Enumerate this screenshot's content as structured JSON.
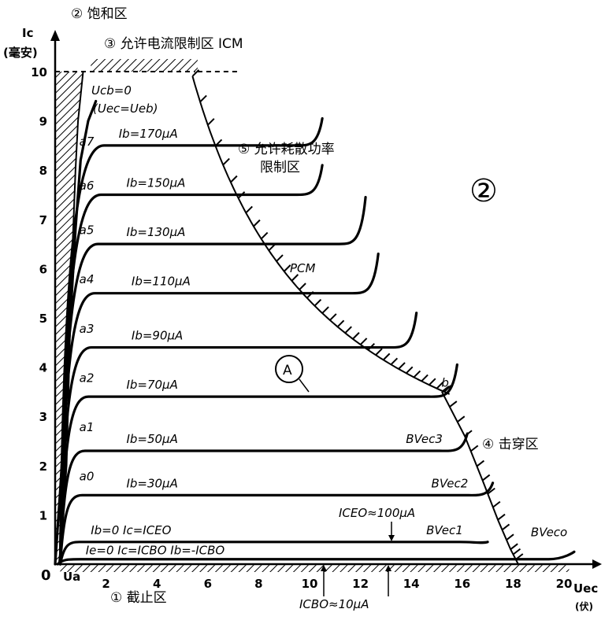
{
  "chart_data": {
    "type": "line",
    "xlabel": "Uec",
    "xunit": "(伏)",
    "ylabel": "Ic",
    "yunit": "(毫安)",
    "xlim": [
      0,
      21
    ],
    "ylim": [
      0,
      10.4
    ],
    "x_ticks": [
      2,
      4,
      6,
      8,
      10,
      12,
      14,
      16,
      18,
      20
    ],
    "y_ticks": [
      1,
      2,
      3,
      4,
      5,
      6,
      7,
      8,
      9,
      10
    ],
    "origin_label": "0",
    "ua_label": "Ua",
    "series": [
      {
        "name": "Ib=0   Ic=ICEO",
        "plateau": 0.45,
        "end_x": 17.0,
        "end_y": 0.45,
        "bv": "BVec1"
      },
      {
        "name": "Ib=30μA",
        "plateau": 1.4,
        "end_x": 17.2,
        "end_y": 1.65,
        "bv": "BVec2"
      },
      {
        "name": "Ib=50μA",
        "plateau": 2.3,
        "end_x": 16.2,
        "end_y": 2.65,
        "bv": "BVec3"
      },
      {
        "name": "Ib=70μA",
        "plateau": 3.4,
        "end_x": 15.8,
        "end_y": 4.05,
        "bv": "b"
      },
      {
        "name": "Ib=90μA",
        "plateau": 4.4,
        "end_x": 14.2,
        "end_y": 5.1
      },
      {
        "name": "Ib=110μA",
        "plateau": 5.5,
        "end_x": 12.7,
        "end_y": 6.3
      },
      {
        "name": "Ib=130μA",
        "plateau": 6.5,
        "end_x": 12.2,
        "end_y": 7.45
      },
      {
        "name": "Ib=150μA",
        "plateau": 7.5,
        "end_x": 10.5,
        "end_y": 8.1
      },
      {
        "name": "Ib=170μA",
        "plateau": 8.5,
        "end_x": 10.5,
        "end_y": 9.05
      }
    ],
    "cutoff_curve": {
      "name": "Ie=0   Ic=ICBO   Ib=-ICBO",
      "plateau": 0.1,
      "end_x": 20.4,
      "end_y": 0.25,
      "bv": "BVeco"
    },
    "point_labels": [
      "a0",
      "a1",
      "a2",
      "a3",
      "a4",
      "a5",
      "a6",
      "a7"
    ],
    "annotations": {
      "saturation_region": "② 饱和区",
      "max_current_region": "③ 允许电流限制区 ICM",
      "power_region_line1": "⑤ 允许耗散功率",
      "power_region_line2": "限制区",
      "breakdown_region": "④ 击穿区",
      "cutoff_region": "① 截止区",
      "ucb_zero": "Ucb=0",
      "uec_ueb": "(Uec=Ueb)",
      "pcm": "PCM",
      "point_a": "A",
      "big_region": "②",
      "iceo_note": "ICEO≈100μA",
      "icbo_note": "ICBO≈10μA"
    }
  }
}
